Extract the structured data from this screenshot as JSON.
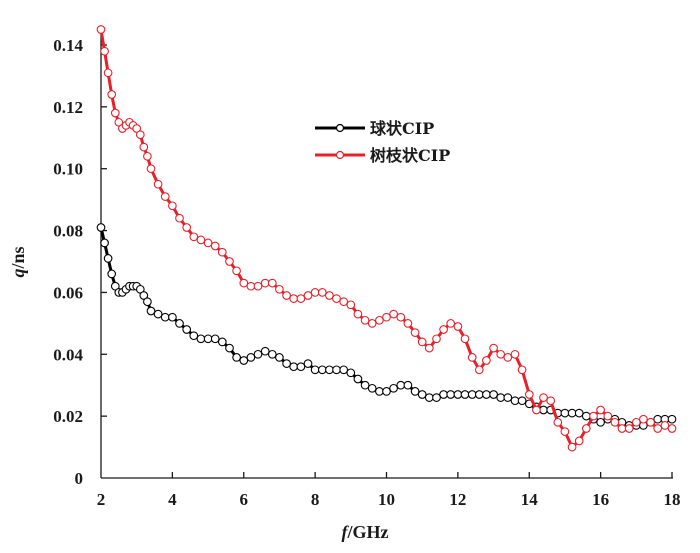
{
  "chart_data": {
    "type": "line",
    "title": "",
    "xlabel": "f/GHz",
    "xlabel_italic_part": "f",
    "xlabel_rest": "/GHz",
    "ylabel": "q/ns",
    "ylabel_italic_part": "q",
    "ylabel_rest": "/ns",
    "xlim": [
      2,
      18
    ],
    "ylim": [
      0,
      0.14
    ],
    "xticks": [
      2,
      4,
      6,
      8,
      10,
      12,
      14,
      16,
      18
    ],
    "xtick_labels": [
      "2",
      "4",
      "6",
      "8",
      "10",
      "12",
      "14",
      "16",
      "18"
    ],
    "yticks": [
      0,
      0.02,
      0.04,
      0.06,
      0.08,
      0.1,
      0.12,
      0.14
    ],
    "ytick_labels": [
      "0",
      "0.02",
      "0.04",
      "0.06",
      "0.08",
      "0.10",
      "0.12",
      "0.14"
    ],
    "grid": false,
    "legend_position": "upper-center",
    "marker": "open-circle",
    "series": [
      {
        "name": "球状CIP",
        "color": "#000000",
        "x": [
          2.0,
          2.1,
          2.2,
          2.3,
          2.4,
          2.5,
          2.6,
          2.7,
          2.8,
          2.9,
          3.0,
          3.1,
          3.2,
          3.3,
          3.4,
          3.6,
          3.8,
          4.0,
          4.2,
          4.4,
          4.6,
          4.8,
          5.0,
          5.2,
          5.4,
          5.6,
          5.8,
          6.0,
          6.2,
          6.4,
          6.6,
          6.8,
          7.0,
          7.2,
          7.4,
          7.6,
          7.8,
          8.0,
          8.2,
          8.4,
          8.6,
          8.8,
          9.0,
          9.2,
          9.4,
          9.6,
          9.8,
          10.0,
          10.2,
          10.4,
          10.6,
          10.8,
          11.0,
          11.2,
          11.4,
          11.6,
          11.8,
          12.0,
          12.2,
          12.4,
          12.6,
          12.8,
          13.0,
          13.2,
          13.4,
          13.6,
          13.8,
          14.0,
          14.2,
          14.4,
          14.6,
          14.8,
          15.0,
          15.2,
          15.4,
          15.6,
          15.8,
          16.0,
          16.2,
          16.4,
          16.6,
          16.8,
          17.0,
          17.2,
          17.4,
          17.6,
          17.8,
          18.0
        ],
        "y": [
          0.081,
          0.076,
          0.071,
          0.066,
          0.062,
          0.06,
          0.06,
          0.061,
          0.062,
          0.062,
          0.062,
          0.061,
          0.059,
          0.057,
          0.054,
          0.053,
          0.052,
          0.052,
          0.05,
          0.048,
          0.046,
          0.045,
          0.045,
          0.045,
          0.044,
          0.042,
          0.039,
          0.038,
          0.039,
          0.04,
          0.041,
          0.04,
          0.039,
          0.037,
          0.036,
          0.036,
          0.037,
          0.035,
          0.035,
          0.035,
          0.035,
          0.035,
          0.034,
          0.032,
          0.03,
          0.029,
          0.028,
          0.028,
          0.029,
          0.03,
          0.03,
          0.028,
          0.027,
          0.026,
          0.026,
          0.027,
          0.027,
          0.027,
          0.027,
          0.027,
          0.027,
          0.027,
          0.027,
          0.026,
          0.026,
          0.025,
          0.025,
          0.024,
          0.023,
          0.022,
          0.022,
          0.021,
          0.021,
          0.021,
          0.021,
          0.02,
          0.019,
          0.018,
          0.019,
          0.019,
          0.018,
          0.017,
          0.017,
          0.017,
          0.018,
          0.019,
          0.019,
          0.019
        ]
      },
      {
        "name": "树枝状CIP",
        "color": "#e8202a",
        "x": [
          2.0,
          2.1,
          2.2,
          2.3,
          2.4,
          2.5,
          2.6,
          2.7,
          2.8,
          2.9,
          3.0,
          3.1,
          3.2,
          3.3,
          3.4,
          3.6,
          3.8,
          4.0,
          4.2,
          4.4,
          4.6,
          4.8,
          5.0,
          5.2,
          5.4,
          5.6,
          5.8,
          6.0,
          6.2,
          6.4,
          6.6,
          6.8,
          7.0,
          7.2,
          7.4,
          7.6,
          7.8,
          8.0,
          8.2,
          8.4,
          8.6,
          8.8,
          9.0,
          9.2,
          9.4,
          9.6,
          9.8,
          10.0,
          10.2,
          10.4,
          10.6,
          10.8,
          11.0,
          11.2,
          11.4,
          11.6,
          11.8,
          12.0,
          12.2,
          12.4,
          12.6,
          12.8,
          13.0,
          13.2,
          13.4,
          13.6,
          13.8,
          14.0,
          14.2,
          14.4,
          14.6,
          14.8,
          15.0,
          15.2,
          15.4,
          15.6,
          15.8,
          16.0,
          16.2,
          16.4,
          16.6,
          16.8,
          17.0,
          17.2,
          17.4,
          17.6,
          17.8,
          18.0
        ],
        "y": [
          0.145,
          0.138,
          0.131,
          0.124,
          0.118,
          0.115,
          0.113,
          0.114,
          0.115,
          0.114,
          0.113,
          0.111,
          0.107,
          0.104,
          0.1,
          0.095,
          0.091,
          0.088,
          0.084,
          0.081,
          0.078,
          0.077,
          0.076,
          0.075,
          0.073,
          0.07,
          0.067,
          0.063,
          0.062,
          0.062,
          0.063,
          0.063,
          0.061,
          0.059,
          0.058,
          0.058,
          0.059,
          0.06,
          0.06,
          0.059,
          0.058,
          0.057,
          0.056,
          0.053,
          0.051,
          0.05,
          0.051,
          0.052,
          0.053,
          0.052,
          0.05,
          0.047,
          0.044,
          0.042,
          0.045,
          0.048,
          0.05,
          0.049,
          0.045,
          0.039,
          0.035,
          0.038,
          0.042,
          0.04,
          0.039,
          0.04,
          0.035,
          0.027,
          0.022,
          0.026,
          0.025,
          0.018,
          0.015,
          0.01,
          0.012,
          0.016,
          0.02,
          0.022,
          0.02,
          0.018,
          0.016,
          0.016,
          0.018,
          0.019,
          0.018,
          0.016,
          0.017,
          0.016
        ]
      }
    ]
  },
  "legend": {
    "items": [
      {
        "label": "球状CIP",
        "color": "#000000"
      },
      {
        "label": "树枝状CIP",
        "color": "#e8202a"
      }
    ]
  }
}
